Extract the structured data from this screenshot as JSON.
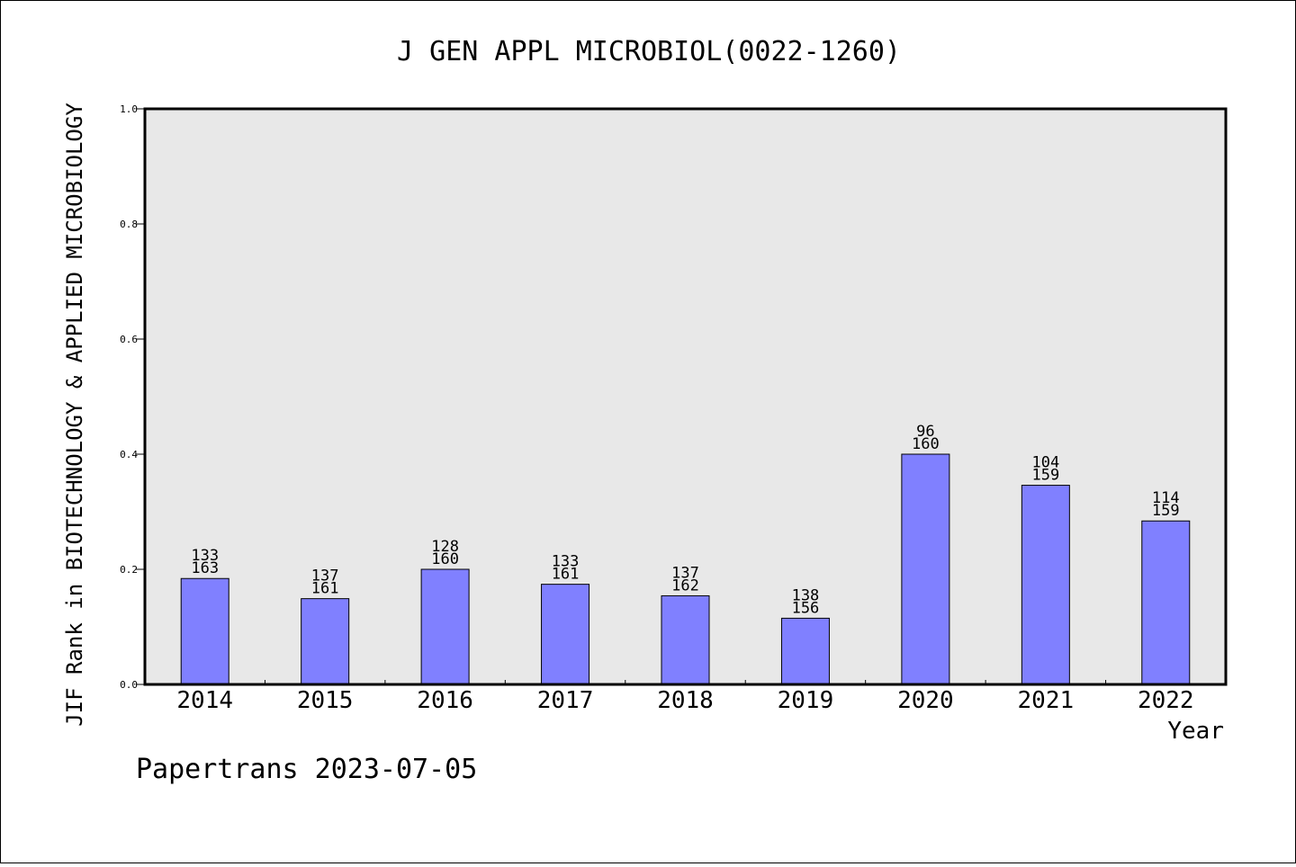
{
  "chart_data": {
    "type": "bar",
    "title": "J GEN APPL MICROBIOL(0022-1260)",
    "ylabel": "JIF Rank in BIOTECHNOLOGY & APPLIED MICROBIOLOGY",
    "xlabel": "Year",
    "footer": "Papertrans 2023-07-05",
    "ylim": [
      0,
      1.0
    ],
    "yticks": [
      0.0,
      0.2,
      0.4,
      0.6,
      0.8,
      1.0
    ],
    "ytick_labels": [
      "0.0",
      "0.2",
      "0.4",
      "0.6",
      "0.8",
      "1.0"
    ],
    "categories": [
      "2014",
      "2015",
      "2016",
      "2017",
      "2018",
      "2019",
      "2020",
      "2021",
      "2022"
    ],
    "values": [
      0.184,
      0.149,
      0.2,
      0.174,
      0.154,
      0.115,
      0.4,
      0.346,
      0.284
    ],
    "ranks": [
      "133",
      "137",
      "128",
      "133",
      "137",
      "138",
      "96",
      "104",
      "114"
    ],
    "totals": [
      "163",
      "161",
      "160",
      "161",
      "162",
      "156",
      "160",
      "159",
      "159"
    ],
    "bar_color": "#8080ff",
    "plot_background": "#e8e8e8",
    "grid": false
  }
}
